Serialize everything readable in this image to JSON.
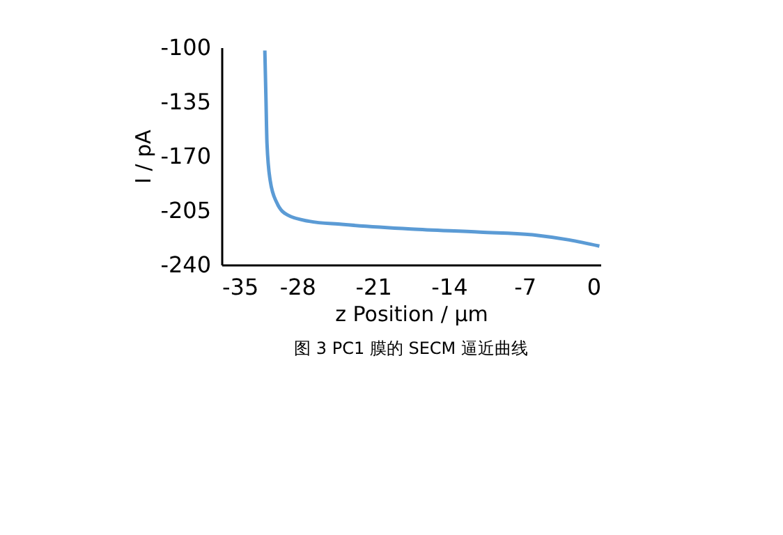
{
  "chart_data": {
    "type": "line",
    "xlabel": "z Position / µm",
    "ylabel": "I / pA",
    "annotations": [
      "图 3 PC1 膜的 SECM 逼近曲线"
    ],
    "series": [
      {
        "color": "#5b9bd5",
        "x": [
          -31.0,
          -30.9,
          -30.8,
          -30.5,
          -29.9,
          -28.9,
          -26.9,
          -23.9,
          -17.5,
          -11.1,
          -5.9,
          -2.9,
          -0.1
        ],
        "values": [
          -102,
          -132,
          -162,
          -186,
          -200,
          -208,
          -212,
          -214,
          -217,
          -219,
          -221,
          -224,
          -228
        ]
      }
    ],
    "xlim": [
      -35,
      0
    ],
    "xticks": [
      -35,
      -28,
      -21,
      -14,
      -7,
      0
    ],
    "ylim": [
      -240,
      -100
    ],
    "yticks": [
      -240,
      -205,
      -170,
      -135,
      -100
    ],
    "grid": false,
    "marker": "none",
    "line_style": "solid"
  }
}
